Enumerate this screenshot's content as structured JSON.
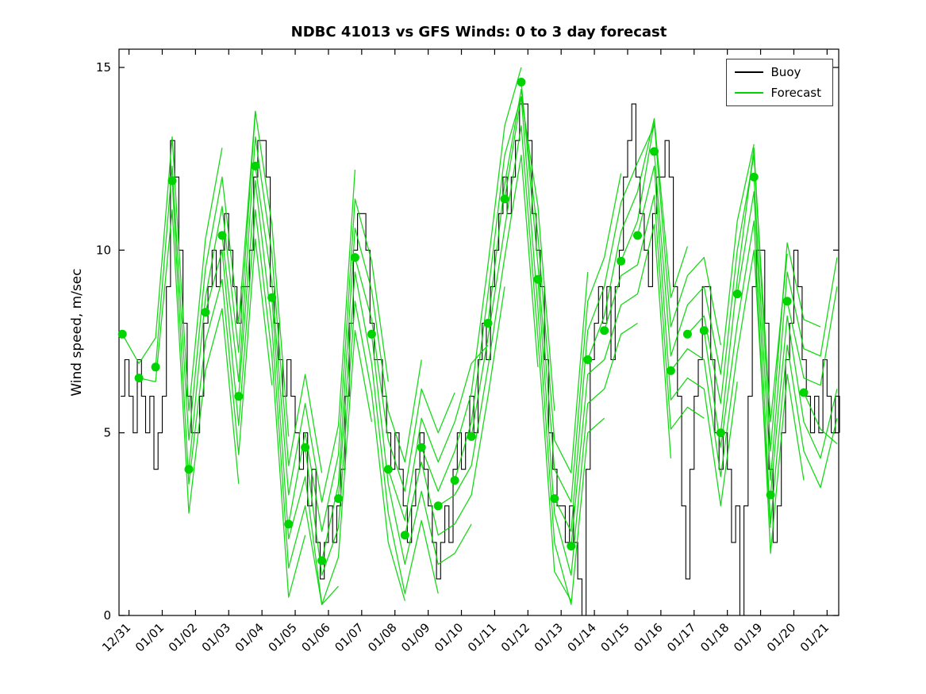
{
  "chart_data": {
    "type": "line",
    "title": "NDBC 41013 vs GFS Winds: 0 to 3 day forecast",
    "xlabel": "",
    "ylabel": "Wind speed, m/sec",
    "xlim": [
      -0.3,
      21.35
    ],
    "ylim": [
      0,
      15.5
    ],
    "yticks": [
      0,
      5,
      10,
      15
    ],
    "xtick_labels": [
      "12/31",
      "01/01",
      "01/02",
      "01/03",
      "01/04",
      "01/05",
      "01/06",
      "01/07",
      "01/08",
      "01/09",
      "01/10",
      "01/11",
      "01/12",
      "01/13",
      "01/14",
      "01/15",
      "01/16",
      "01/17",
      "01/18",
      "01/19",
      "01/20",
      "01/21"
    ],
    "grid": false,
    "legend_position": "upper-right",
    "legend": [
      {
        "label": "Buoy",
        "color": "#000000"
      },
      {
        "label": "Forecast",
        "color": "#00d400"
      }
    ],
    "buoy": {
      "name": "Buoy",
      "style": "step",
      "color": "#000000",
      "t0": -0.25,
      "dt_days": 0.125,
      "values": [
        6,
        7,
        6,
        5,
        7,
        6,
        5,
        6,
        4,
        5,
        6,
        9,
        13,
        12,
        10,
        8,
        6,
        5,
        5,
        6,
        8,
        9,
        10,
        9,
        10,
        11,
        10,
        9,
        8,
        9,
        9,
        10,
        12,
        13,
        13,
        12,
        9,
        8,
        7,
        6,
        7,
        6,
        5,
        4,
        5,
        3,
        4,
        2,
        1,
        2,
        3,
        2,
        3,
        4,
        6,
        8,
        10,
        11,
        11,
        10,
        8,
        7,
        7,
        6,
        5,
        4,
        5,
        4,
        3,
        2,
        3,
        4,
        5,
        4,
        3,
        2,
        1,
        2,
        3,
        2,
        4,
        5,
        4,
        5,
        6,
        5,
        7,
        8,
        7,
        9,
        10,
        11,
        12,
        11,
        12,
        13,
        14,
        14,
        13,
        11,
        10,
        9,
        7,
        5,
        4,
        3,
        3,
        2,
        3,
        2,
        1,
        0,
        4,
        7,
        8,
        9,
        8,
        9,
        7,
        9,
        10,
        12,
        13,
        14,
        12,
        11,
        10,
        9,
        11,
        12,
        12,
        13,
        12,
        9,
        6,
        3,
        1,
        4,
        6,
        7,
        9,
        9,
        7,
        5,
        4,
        5,
        4,
        2,
        3,
        0,
        3,
        6,
        9,
        10,
        10,
        8,
        4,
        2,
        3,
        5,
        7,
        8,
        10,
        9,
        7,
        6,
        5,
        6,
        5,
        7,
        6,
        5,
        6,
        5
      ]
    },
    "forecast": {
      "name": "Forecast",
      "color": "#00d400",
      "dt_days": 0.5,
      "marker": "filled-circle",
      "runs": [
        {
          "t0": -0.2,
          "values": [
            7.7,
            6.9,
            7.6,
            13.1,
            5.6,
            10.3,
            12.8
          ]
        },
        {
          "t0": 0.3,
          "values": [
            6.5,
            6.4,
            11.1,
            2.8,
            6.7,
            8.4,
            3.6
          ]
        },
        {
          "t0": 0.8,
          "values": [
            6.8,
            12.3,
            4.8,
            9.5,
            12.0,
            8.0,
            13.8
          ]
        },
        {
          "t0": 1.3,
          "values": [
            11.9,
            3.6,
            7.5,
            9.2,
            4.4,
            10.3,
            6.3
          ]
        },
        {
          "t0": 1.8,
          "values": [
            4.0,
            8.7,
            11.2,
            7.2,
            13.8,
            10.7,
            4.9
          ]
        },
        {
          "t0": 2.3,
          "values": [
            8.3,
            10.0,
            5.2,
            11.1,
            7.1,
            0.5,
            2.2
          ]
        },
        {
          "t0": 2.8,
          "values": [
            10.4,
            6.4,
            13.1,
            9.9,
            4.1,
            6.6,
            3.9
          ]
        },
        {
          "t0": 3.3,
          "values": [
            6.0,
            11.9,
            7.9,
            1.3,
            3.0,
            0.3,
            0.8
          ]
        },
        {
          "t0": 3.8,
          "values": [
            12.3,
            9.1,
            3.3,
            5.8,
            3.1,
            5.2,
            12.2
          ]
        },
        {
          "t0": 4.3,
          "values": [
            8.7,
            2.1,
            3.8,
            0.3,
            1.6,
            7.8,
            5.3
          ]
        },
        {
          "t0": 4.8,
          "values": [
            2.5,
            5.0,
            2.3,
            4.4,
            11.4,
            9.7,
            6.4
          ]
        },
        {
          "t0": 5.3,
          "values": [
            4.6,
            1.1,
            2.4,
            8.6,
            6.1,
            2.0,
            0.4
          ]
        },
        {
          "t0": 5.8,
          "values": [
            1.5,
            3.6,
            10.6,
            8.9,
            5.6,
            4.2,
            7.0
          ]
        },
        {
          "t0": 6.3,
          "values": [
            3.2,
            9.4,
            6.9,
            2.8,
            0.6,
            2.6,
            0.6
          ]
        },
        {
          "t0": 6.8,
          "values": [
            9.8,
            8.1,
            4.8,
            3.4,
            6.2,
            5.0,
            6.1
          ]
        },
        {
          "t0": 7.3,
          "values": [
            7.7,
            3.6,
            1.4,
            3.4,
            1.4,
            1.7,
            2.5
          ]
        },
        {
          "t0": 7.8,
          "values": [
            4.0,
            2.6,
            5.4,
            4.2,
            5.3,
            6.9,
            7.4
          ]
        },
        {
          "t0": 8.3,
          "values": [
            2.2,
            4.2,
            2.2,
            2.5,
            3.3,
            6.0,
            9.0
          ]
        },
        {
          "t0": 8.8,
          "values": [
            4.6,
            3.4,
            4.5,
            6.1,
            9.6,
            13.4,
            15.0
          ]
        },
        {
          "t0": 9.3,
          "values": [
            3.0,
            3.3,
            4.1,
            6.8,
            9.8,
            12.6,
            6.8
          ]
        },
        {
          "t0": 9.8,
          "values": [
            3.7,
            5.3,
            8.8,
            12.6,
            14.2,
            11.2,
            5.6
          ]
        },
        {
          "t0": 10.3,
          "values": [
            4.9,
            7.6,
            10.6,
            13.4,
            7.6,
            1.2,
            0.4
          ]
        },
        {
          "t0": 10.8,
          "values": [
            8.0,
            11.8,
            14.4,
            10.4,
            4.8,
            3.9,
            9.4
          ]
        },
        {
          "t0": 11.3,
          "values": [
            11.4,
            14.2,
            8.4,
            2.0,
            0.3,
            5.0,
            5.4
          ]
        },
        {
          "t0": 11.8,
          "values": [
            14.6,
            9.6,
            4.0,
            3.1,
            8.6,
            9.8,
            12.1
          ]
        },
        {
          "t0": 12.3,
          "values": [
            9.2,
            2.8,
            1.1,
            5.8,
            6.2,
            7.7,
            8.0
          ]
        },
        {
          "t0": 12.8,
          "values": [
            3.2,
            2.3,
            7.8,
            9.0,
            11.3,
            12.4,
            13.4
          ]
        },
        {
          "t0": 13.3,
          "values": [
            1.9,
            6.6,
            7.0,
            8.5,
            8.8,
            10.7,
            4.3
          ]
        },
        {
          "t0": 13.8,
          "values": [
            7.0,
            8.2,
            10.5,
            11.6,
            13.6,
            8.7,
            10.1
          ]
        },
        {
          "t0": 14.3,
          "values": [
            7.8,
            9.3,
            9.6,
            11.5,
            5.1,
            5.7,
            5.4
          ]
        },
        {
          "t0": 14.8,
          "values": [
            9.7,
            10.8,
            13.5,
            7.9,
            9.3,
            9.8,
            7.4
          ]
        },
        {
          "t0": 15.3,
          "values": [
            10.4,
            12.3,
            5.9,
            6.5,
            6.2,
            3.0,
            6.4
          ]
        },
        {
          "t0": 15.8,
          "values": [
            12.7,
            7.1,
            8.5,
            9.0,
            6.6,
            10.8,
            12.9
          ]
        },
        {
          "t0": 16.3,
          "values": [
            6.7,
            7.3,
            7.0,
            3.8,
            7.2,
            10.0,
            2.4
          ]
        },
        {
          "t0": 16.8,
          "values": [
            7.7,
            8.2,
            5.8,
            10.0,
            12.6,
            5.3,
            9.9
          ]
        },
        {
          "t0": 17.3,
          "values": [
            7.8,
            4.6,
            8.0,
            10.8,
            1.7,
            6.6,
            3.7
          ]
        },
        {
          "t0": 17.8,
          "values": [
            5.0,
            9.2,
            12.8,
            4.5,
            10.2,
            8.1,
            7.9
          ]
        },
        {
          "t0": 18.3,
          "values": [
            8.8,
            11.6,
            2.5,
            7.4,
            4.5,
            3.5,
            5.4
          ]
        },
        {
          "t0": 18.8,
          "values": [
            12.0,
            3.7,
            9.4,
            7.3,
            7.1,
            9.8
          ]
        },
        {
          "t0": 19.3,
          "values": [
            3.3,
            8.2,
            5.3,
            4.3,
            6.2
          ]
        },
        {
          "t0": 19.8,
          "values": [
            8.6,
            6.5,
            6.3,
            9.0
          ]
        },
        {
          "t0": 20.3,
          "values": [
            6.1,
            5.1,
            4.7
          ]
        }
      ]
    }
  }
}
